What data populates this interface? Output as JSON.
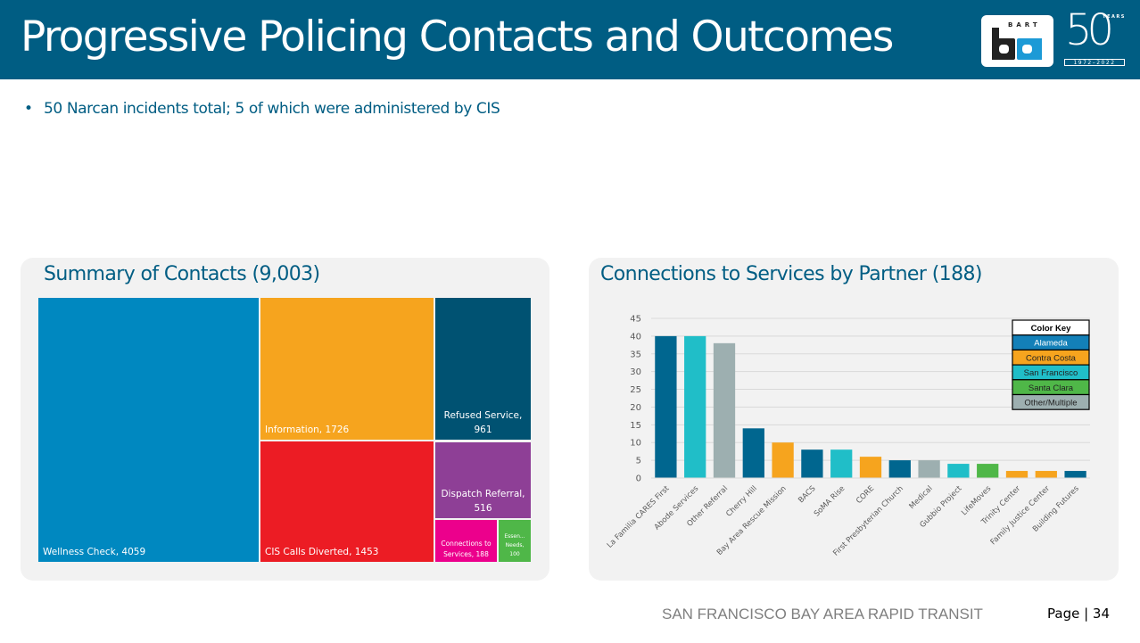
{
  "header": {
    "title": "Progressive Policing Contacts and Outcomes",
    "logo_bart_text": "BART",
    "logo_50_text": "50",
    "logo_years_text": "YEARS",
    "logo_span_text": "1972–2022"
  },
  "bullets": [
    "50 Narcan incidents total; 5 of which were administered by CIS"
  ],
  "bullet_glyph": "•",
  "footer": {
    "organization": "SAN FRANCISCO BAY AREA RAPID TRANSIT",
    "page_label": "Page | 34"
  },
  "colors": {
    "header_bg": "#005d83",
    "title_text": "#005d83",
    "panel_bg": "#f2f2f2"
  },
  "chart_data": [
    {
      "type": "treemap",
      "title": "Summary of Contacts (9,003)",
      "total": 9003,
      "items": [
        {
          "label": "Wellness Check",
          "value": 4059,
          "display": "Wellness Check, 4059",
          "color": "#0088c0"
        },
        {
          "label": "Information",
          "value": 1726,
          "display": "Information, 1726",
          "color": "#f6a41e"
        },
        {
          "label": "CIS Calls Diverted",
          "value": 1453,
          "display": "CIS Calls Diverted, 1453",
          "color": "#ec1c24"
        },
        {
          "label": "Refused Service",
          "value": 961,
          "display_lines": [
            "Refused Service,",
            "961"
          ],
          "color": "#005272"
        },
        {
          "label": "Dispatch Referral",
          "value": 516,
          "display_lines": [
            "Dispatch Referral,",
            "516"
          ],
          "color": "#8e3f96"
        },
        {
          "label": "Connections to Services",
          "value": 188,
          "display_lines": [
            "Connections to",
            "Services, 188"
          ],
          "color": "#ec008c"
        },
        {
          "label": "Essential Needs",
          "value": 100,
          "display_lines": [
            "Essen...",
            "Needs,",
            "100"
          ],
          "color": "#4fb748"
        }
      ]
    },
    {
      "type": "bar",
      "title": "Connections to Services by Partner (188)",
      "xlabel": "",
      "ylabel": "",
      "ylim": [
        0,
        45
      ],
      "yticks": [
        0,
        5,
        10,
        15,
        20,
        25,
        30,
        35,
        40,
        45
      ],
      "grid": true,
      "categories": [
        "La Familia CARES First",
        "Abode Services",
        "Other Referral",
        "Cherry Hill",
        "Bay Area Rescue Mission",
        "BACS",
        "SoMA Rise",
        "CORE",
        "First Presbyterian Church",
        "Medical",
        "Gubbio Project",
        "LifeMoves",
        "Trinity Center",
        "Family Justice Center",
        "Building Futures"
      ],
      "values": [
        40,
        40,
        38,
        14,
        10,
        8,
        8,
        6,
        5,
        5,
        4,
        4,
        2,
        2,
        2
      ],
      "bar_groups": [
        "Alameda",
        "San Francisco",
        "Other/Multiple",
        "Alameda",
        "Contra Costa",
        "Alameda",
        "San Francisco",
        "Contra Costa",
        "Alameda",
        "Other/Multiple",
        "San Francisco",
        "Santa Clara",
        "Contra Costa",
        "Contra Costa",
        "Alameda"
      ],
      "group_colors": {
        "Alameda": "#00668f",
        "Contra Costa": "#f6a41e",
        "San Francisco": "#20bec8",
        "Santa Clara": "#4fb748",
        "Other/Multiple": "#9dafb0"
      },
      "legend": {
        "title": "Color Key",
        "placement": "top-right",
        "entries": [
          {
            "label": "Alameda",
            "color": "#1380b8",
            "text_color": "#ffffff"
          },
          {
            "label": "Contra Costa",
            "color": "#f6a41e",
            "text_color": "#222222"
          },
          {
            "label": "San Francisco",
            "color": "#20bec8",
            "text_color": "#222222"
          },
          {
            "label": "Santa Clara",
            "color": "#4fb748",
            "text_color": "#222222"
          },
          {
            "label": "Other/Multiple",
            "color": "#9dafb0",
            "text_color": "#222222"
          }
        ]
      }
    }
  ]
}
